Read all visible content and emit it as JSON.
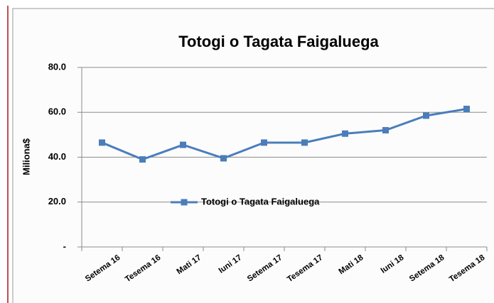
{
  "chart_data": {
    "type": "line",
    "title": "Totogi o Tagata Faigaluega",
    "y_label": "Miliona$",
    "categories": [
      "Setema 16",
      "Tesema 16",
      "Mati 17",
      "Iuni 17",
      "Setema 17",
      "Tesema 17",
      "Mati 18",
      "Iuni 18",
      "Setema 18",
      "Tesema 18"
    ],
    "series": [
      {
        "name": "Totogi o Tagata Faigaluega",
        "color": "#4a7ebb",
        "values": [
          46.5,
          39,
          45.5,
          39.5,
          46.5,
          46.5,
          50.5,
          52,
          58.5,
          61.5
        ]
      }
    ],
    "ylim": [
      0,
      80
    ],
    "yticks": [
      {
        "value": 0,
        "label": "-"
      },
      {
        "value": 20,
        "label": "20.0"
      },
      {
        "value": 40,
        "label": "40.0"
      },
      {
        "value": 60,
        "label": "60.0"
      },
      {
        "value": 80,
        "label": "80.0"
      }
    ],
    "grid": true,
    "legend": "center"
  }
}
